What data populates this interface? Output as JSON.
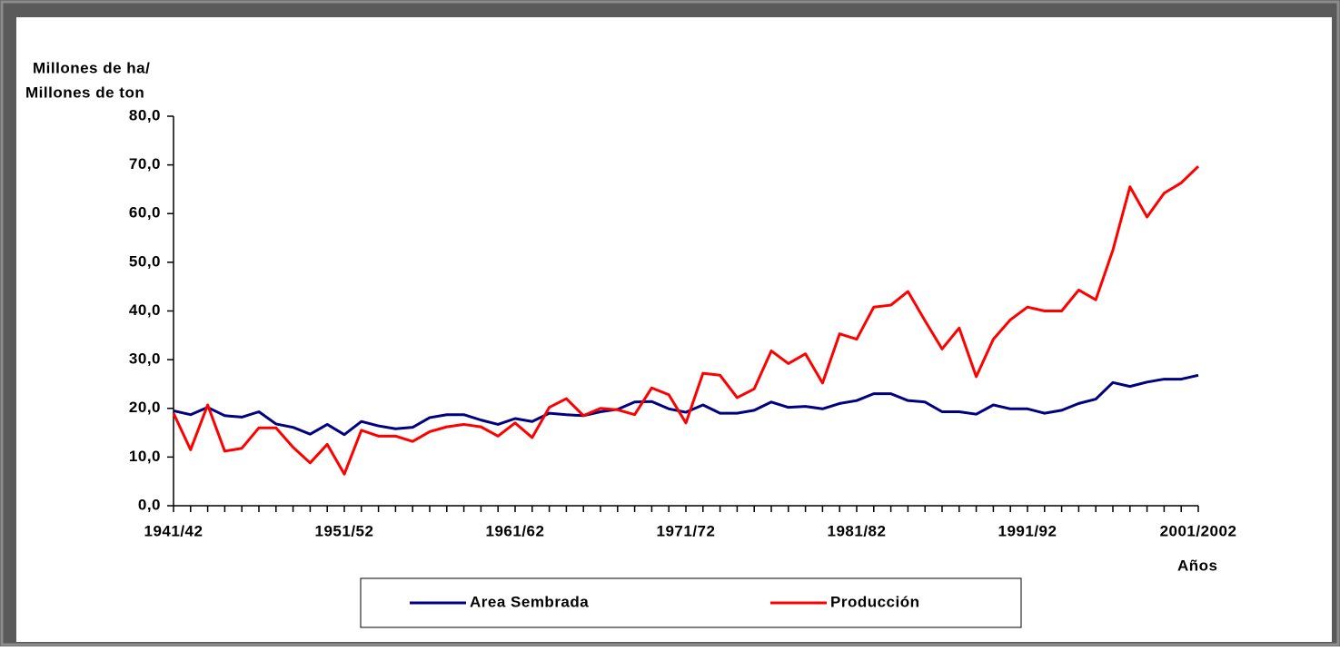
{
  "chart_data": {
    "type": "line",
    "y_label": [
      "Millones de ha/",
      "Millones de ton"
    ],
    "x_label": "Años",
    "categories": [
      "1941/42",
      null,
      null,
      null,
      null,
      null,
      null,
      null,
      null,
      null,
      "1951/52",
      null,
      null,
      null,
      null,
      null,
      null,
      null,
      null,
      null,
      "1961/62",
      null,
      null,
      null,
      null,
      null,
      null,
      null,
      null,
      null,
      "1971/72",
      null,
      null,
      null,
      null,
      null,
      null,
      null,
      null,
      null,
      "1981/82",
      null,
      null,
      null,
      null,
      null,
      null,
      null,
      null,
      null,
      "1991/92",
      null,
      null,
      null,
      null,
      null,
      null,
      null,
      null,
      null,
      "2001/2002"
    ],
    "series": [
      {
        "name": "Area Sembrada",
        "color": "#000080",
        "values": [
          19.5,
          18.7,
          20.2,
          18.5,
          18.2,
          19.3,
          16.8,
          16.1,
          14.7,
          16.7,
          14.6,
          17.3,
          16.4,
          15.8,
          16.1,
          18.1,
          18.7,
          18.7,
          17.6,
          16.7,
          17.9,
          17.3,
          19,
          18.7,
          18.5,
          19.3,
          19.8,
          21.3,
          21.4,
          19.9,
          19.2,
          20.7,
          19,
          19,
          19.6,
          21.3,
          20.2,
          20.4,
          19.9,
          21,
          21.6,
          23,
          23,
          21.6,
          21.3,
          19.3,
          19.3,
          18.8,
          20.7,
          19.9,
          19.9,
          19,
          19.6,
          21,
          21.9,
          25.3,
          24.5,
          25.4,
          26,
          26,
          26.8
        ]
      },
      {
        "name": "Producción",
        "color": "#ff0000",
        "values": [
          19,
          11.5,
          20.7,
          11.2,
          11.8,
          16,
          16,
          12,
          8.8,
          12.6,
          6.5,
          15.5,
          14.3,
          14.3,
          13.2,
          15.2,
          16.2,
          16.7,
          16.2,
          14.3,
          17,
          14,
          20.2,
          22,
          18.5,
          20,
          19.7,
          18.7,
          24.2,
          22.8,
          17,
          27.2,
          26.8,
          22.2,
          24,
          31.8,
          29.2,
          31.2,
          25.2,
          35.3,
          34.2,
          40.8,
          41.2,
          44,
          38,
          32.2,
          36.5,
          26.5,
          34.2,
          38.2,
          40.8,
          40,
          40,
          44.3,
          42.3,
          52.5,
          65.5,
          59.3,
          64.2,
          66.3,
          69.7
        ]
      }
    ],
    "ylim": [
      0,
      80
    ],
    "yticks": [
      {
        "value": 0,
        "label": "0,0"
      },
      {
        "value": 10,
        "label": "10,0"
      },
      {
        "value": 20,
        "label": "20,0"
      },
      {
        "value": 30,
        "label": "30,0"
      },
      {
        "value": 40,
        "label": "40,0"
      },
      {
        "value": 50,
        "label": "50,0"
      },
      {
        "value": 60,
        "label": "60,0"
      },
      {
        "value": 70,
        "label": "70,0"
      },
      {
        "value": 80,
        "label": "80,0"
      }
    ],
    "grid": false,
    "legend": "bottom"
  }
}
